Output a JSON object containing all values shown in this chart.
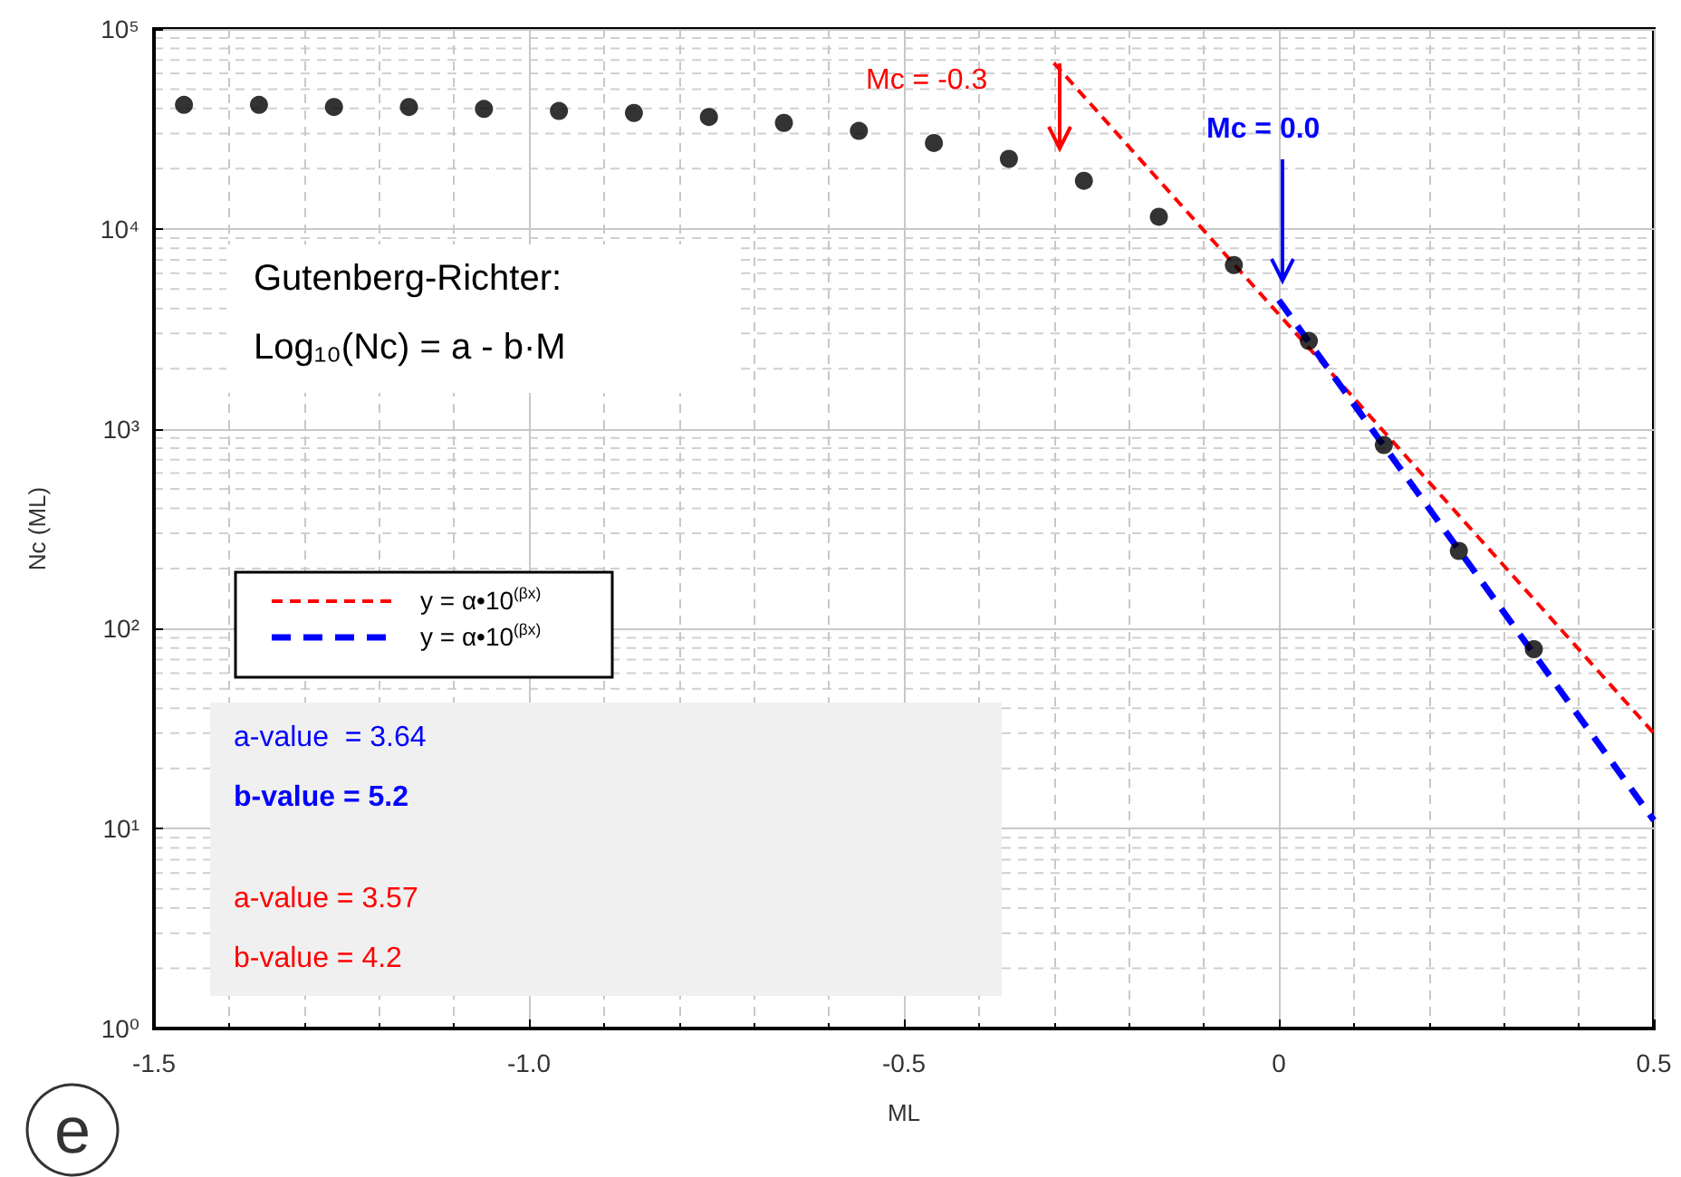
{
  "chart_data": {
    "type": "scatter",
    "xlabel": "ML",
    "ylabel": "Nc (ML)",
    "xlim": [
      -1.5,
      0.5
    ],
    "xticks": [
      -1.5,
      {
        "value": -1,
        "label": "-1.0"
      },
      -0.5,
      0,
      0.5
    ],
    "ylim": [
      1,
      100000
    ],
    "yticks": [
      {
        "value": 1,
        "label": "10⁰"
      },
      {
        "value": 10,
        "label": "10¹"
      },
      {
        "value": 100,
        "label": "10²"
      },
      {
        "value": 1000,
        "label": "10³"
      },
      {
        "value": 10000,
        "label": "10⁴"
      },
      {
        "value": 100000,
        "label": "10⁵"
      }
    ],
    "log": "y",
    "grid": true,
    "legend": "left",
    "series": [
      {
        "color": "#000000",
        "marker": "circle",
        "x": [
          -1.46,
          -1.36,
          -1.26,
          -1.16,
          -1.06,
          -0.96,
          -0.86,
          -0.76,
          -0.66,
          -0.56,
          -0.46,
          -0.36,
          -0.26,
          -0.16,
          -0.06,
          0.04,
          0.14,
          0.24,
          0.34
        ],
        "values": [
          41700,
          41700,
          40700,
          40700,
          39800,
          38900,
          38000,
          36300,
          33900,
          30900,
          26900,
          22400,
          17400,
          11500,
          6600,
          2750,
          830,
          245,
          79
        ]
      },
      {
        "type": "line",
        "name": "y = α•10$^{(βx)}$",
        "color": "#ff0000",
        "line_style": "dashed",
        "marker": "none",
        "x": [
          -0.3,
          0.5
        ],
        "values": [
          67600,
          30
        ]
      },
      {
        "type": "line",
        "name": "y = α•10$^{(βx)}$",
        "color": "#0000ff",
        "line_style": "dashed",
        "marker": "none",
        "x": [
          0,
          0.5
        ],
        "values": [
          4400,
          11
        ]
      }
    ],
    "annotations": [
      "Mc = -0.3",
      "Mc = 0.0",
      "Gutenberg-Richter:",
      "Log₁₀(Nc) = a - b·M",
      "a-value  = 3.64",
      "b-value = 5.2",
      "a-value = 3.57",
      "b-value = 4.2",
      "e"
    ]
  }
}
